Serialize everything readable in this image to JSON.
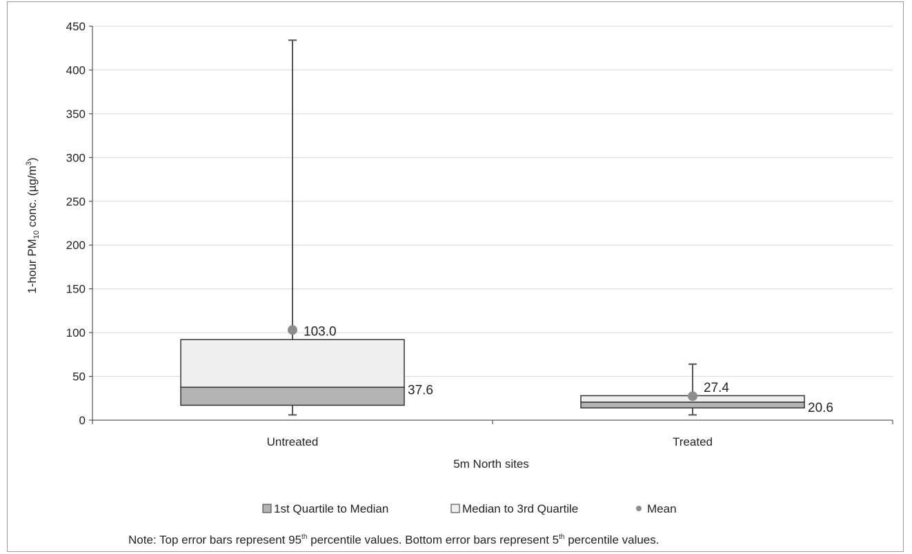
{
  "chart_data": {
    "type": "box",
    "xlabel": "5m North sites",
    "ylabel": "1-hour PM10 conc. (µg/m³)",
    "ylabel_parts": {
      "pre": "1-hour PM",
      "sub": "10",
      "mid": " conc. (µg/m",
      "sup": "3",
      "post": ")"
    },
    "ylim": [
      0,
      450
    ],
    "yticks": [
      0,
      50,
      100,
      150,
      200,
      250,
      300,
      350,
      400,
      450
    ],
    "grid": true,
    "categories": [
      "Untreated",
      "Treated"
    ],
    "boxes": [
      {
        "category": "Untreated",
        "p5": 6,
        "q1": 17,
        "median": 37.6,
        "q3": 92,
        "p95": 434,
        "mean": 103.0,
        "median_label": "37.6",
        "mean_label": "103.0"
      },
      {
        "category": "Treated",
        "p5": 6,
        "q1": 14,
        "median": 20.6,
        "q3": 28,
        "p95": 64,
        "mean": 27.4,
        "median_label": "20.6",
        "mean_label": "27.4"
      }
    ],
    "legend": {
      "placement": "bottom",
      "items": [
        "1st Quartile to Median",
        "Median to 3rd Quartile",
        "Mean"
      ]
    },
    "note": {
      "pre": "Note:  Top error bars represent 95",
      "sup1": "th",
      "mid": " percentile values. Bottom error bars represent 5",
      "sup2": "th",
      "post": " percentile  values."
    },
    "colors": {
      "lower_box": "#b4b4b4",
      "upper_box": "#efefef",
      "mean_marker": "#8c8c8c",
      "lines": "#555555",
      "grid": "#d9d9d9"
    }
  }
}
